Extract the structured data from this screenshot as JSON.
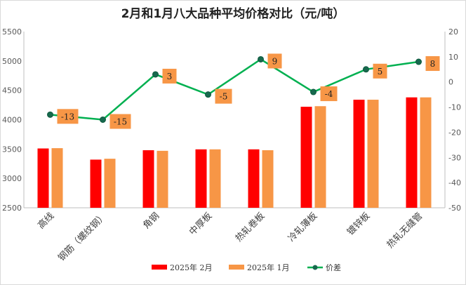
{
  "chart_data": {
    "type": "bar",
    "title": "2月和1月八大品种平均价格对比（元/吨）",
    "categories": [
      "高线",
      "钢筋（螺纹钢）",
      "角钢",
      "中厚板",
      "热轧卷板",
      "冷轧薄板",
      "镀锌板",
      "热轧无缝管"
    ],
    "series": [
      {
        "name": "2025年 2月",
        "type": "bar",
        "axis": "left",
        "color": "#ff0000",
        "values": [
          3510,
          3320,
          3480,
          3495,
          3495,
          4220,
          4340,
          4380
        ]
      },
      {
        "name": "2025年 1月",
        "type": "bar",
        "axis": "left",
        "color": "#f79646",
        "values": [
          3515,
          3335,
          3470,
          3495,
          3480,
          4230,
          4340,
          4380
        ]
      },
      {
        "name": "价差",
        "type": "line",
        "axis": "right",
        "color": "#00b050",
        "values": [
          -13,
          -15,
          3,
          -5,
          9,
          -4,
          5,
          8
        ]
      }
    ],
    "yleft": {
      "min": 2500,
      "max": 5500,
      "ticks": [
        2500,
        3000,
        3500,
        4000,
        4500,
        5000,
        5500
      ]
    },
    "yright": {
      "min": -50,
      "max": 20,
      "ticks": [
        -50,
        -40,
        -30,
        -20,
        -10,
        0,
        10,
        20
      ]
    },
    "data_labels": [
      "-13",
      "-15",
      "3",
      "-5",
      "9",
      "-4",
      "5",
      "8"
    ],
    "label_color": "#f79646",
    "legend_position": "bottom",
    "grid": false
  }
}
